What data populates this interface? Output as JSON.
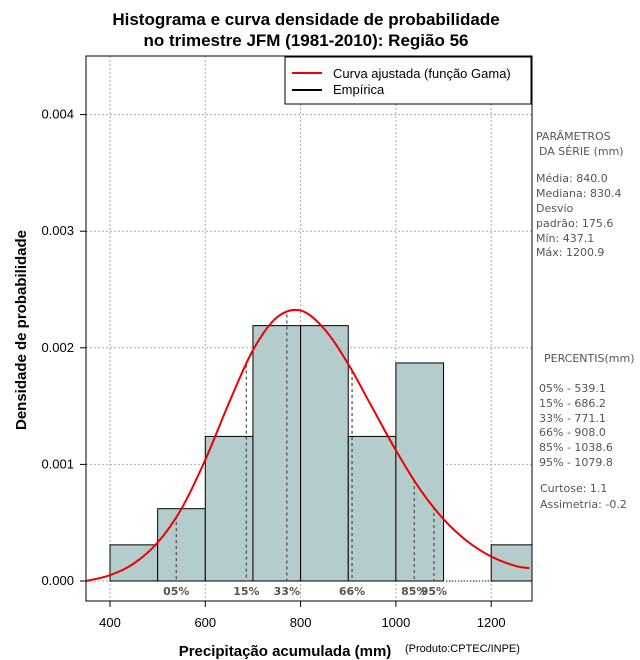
{
  "chart_data": {
    "type": "histogram",
    "title_lines": [
      "Histograma e curva densidade de probabilidade",
      "no trimestre JFM (1981-2010): Região 56"
    ],
    "xlabel": "Precipitação acumulada (mm)",
    "ylabel": "Densidade de probabilidade",
    "xlim": [
      350,
      1280
    ],
    "ylim": [
      0,
      0.0045
    ],
    "x_ticks": [
      400,
      600,
      800,
      1000,
      1200
    ],
    "y_ticks": [
      0.0,
      0.001,
      0.002,
      0.003,
      0.004
    ],
    "y_tick_labels": [
      "0.000",
      "0.001",
      "0.002",
      "0.003",
      "0.004"
    ],
    "grid": true,
    "bins": [
      {
        "from": 400,
        "to": 500,
        "density": 0.00031
      },
      {
        "from": 500,
        "to": 600,
        "density": 0.00062
      },
      {
        "from": 600,
        "to": 700,
        "density": 0.00124
      },
      {
        "from": 700,
        "to": 800,
        "density": 0.00219
      },
      {
        "from": 800,
        "to": 900,
        "density": 0.00219
      },
      {
        "from": 900,
        "to": 1000,
        "density": 0.00124
      },
      {
        "from": 1000,
        "to": 1100,
        "density": 0.00187
      },
      {
        "from": 1100,
        "to": 1200,
        "density": 0.0
      },
      {
        "from": 1200,
        "to": 1300,
        "density": 0.00031
      }
    ],
    "fitted_curve": {
      "name": "Curva ajustada (função Gama)",
      "color": "#ee0000",
      "points": [
        [
          350,
          0.0
        ],
        [
          400,
          5e-05
        ],
        [
          450,
          0.00015
        ],
        [
          500,
          0.00033
        ],
        [
          550,
          0.00062
        ],
        [
          600,
          0.00104
        ],
        [
          650,
          0.00153
        ],
        [
          700,
          0.00198
        ],
        [
          750,
          0.00226
        ],
        [
          800,
          0.00232
        ],
        [
          850,
          0.00216
        ],
        [
          900,
          0.00186
        ],
        [
          950,
          0.00149
        ],
        [
          1000,
          0.00112
        ],
        [
          1050,
          0.00079
        ],
        [
          1100,
          0.00053
        ],
        [
          1150,
          0.00034
        ],
        [
          1200,
          0.00021
        ],
        [
          1250,
          0.00013
        ],
        [
          1280,
          0.00011
        ]
      ]
    },
    "legend": [
      {
        "label": "Curva ajustada (função Gama)",
        "color": "#ee0000"
      },
      {
        "label": "Empírica",
        "color": "#000000"
      }
    ],
    "legend_position": "top-right",
    "percentiles": [
      {
        "label": "05%",
        "value": 539.1
      },
      {
        "label": "15%",
        "value": 686.2
      },
      {
        "label": "33%",
        "value": 771.1
      },
      {
        "label": "66%",
        "value": 908.0
      },
      {
        "label": "85%",
        "value": 1038.6
      },
      {
        "label": "95%",
        "value": 1079.8
      }
    ]
  },
  "colors": {
    "bar_fill": "#b4cccc",
    "grid": "#aaaaaa"
  },
  "side_panel": {
    "params_heading_1": "PARÂMETROS",
    "params_heading_2": "DA SÉRIE (mm)",
    "params_lines": [
      "Média:  840.0",
      "Mediana:  830.4",
      "Desvio",
      "padrão:  175.6",
      "Mín:  437.1",
      "Máx:  1200.9"
    ],
    "percentis_heading": "PERCENTIS(mm)",
    "percentis_lines": [
      "05% -  539.1",
      "15% -  686.2",
      "33% -  771.1",
      "66% -  908.0",
      "85% -  1038.6",
      "95% -  1079.8"
    ],
    "curtose_line": "Curtose:  1.1",
    "assimetria_line": "Assimetria:  -0.2"
  },
  "credit": "(Produto:CPTEC/INPE)"
}
